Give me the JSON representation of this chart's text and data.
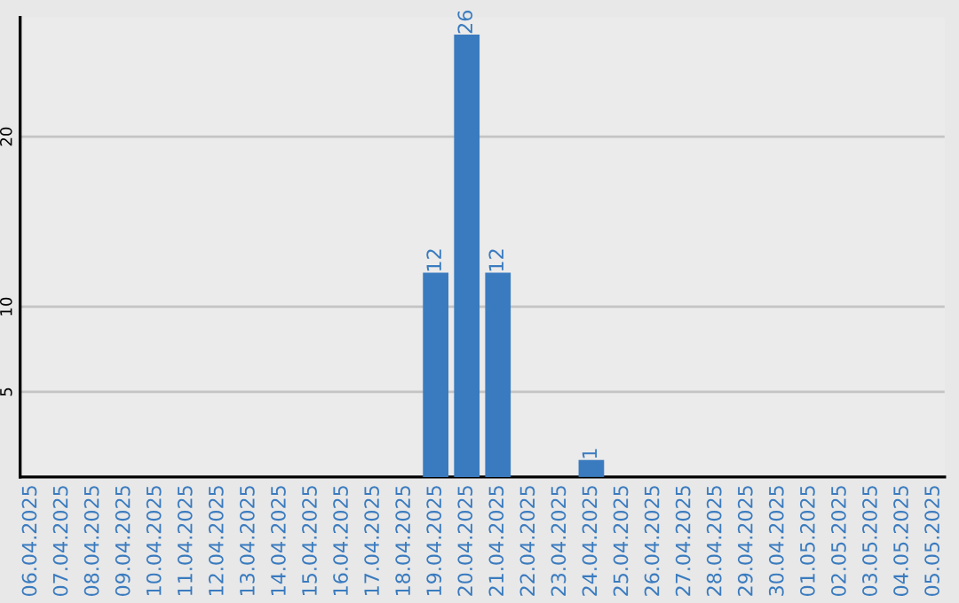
{
  "chart_data": {
    "type": "bar",
    "categories": [
      "06.04.2025",
      "07.04.2025",
      "08.04.2025",
      "09.04.2025",
      "10.04.2025",
      "11.04.2025",
      "12.04.2025",
      "13.04.2025",
      "14.04.2025",
      "15.04.2025",
      "16.04.2025",
      "17.04.2025",
      "18.04.2025",
      "19.04.2025",
      "20.04.2025",
      "21.04.2025",
      "22.04.2025",
      "23.04.2025",
      "24.04.2025",
      "25.04.2025",
      "26.04.2025",
      "27.04.2025",
      "28.04.2025",
      "29.04.2025",
      "30.04.2025",
      "01.05.2025",
      "02.05.2025",
      "03.05.2025",
      "04.05.2025",
      "05.05.2025"
    ],
    "values": [
      0,
      0,
      0,
      0,
      0,
      0,
      0,
      0,
      0,
      0,
      0,
      0,
      0,
      12,
      26,
      12,
      0,
      0,
      1,
      0,
      0,
      0,
      0,
      0,
      0,
      0,
      0,
      0,
      0,
      0
    ],
    "value_labels": [
      null,
      null,
      null,
      null,
      null,
      null,
      null,
      null,
      null,
      null,
      null,
      null,
      null,
      "12",
      "26",
      "12",
      null,
      null,
      "1",
      null,
      null,
      null,
      null,
      null,
      null,
      null,
      null,
      null,
      null,
      null
    ],
    "color": "#3a7bbf",
    "ylim": [
      0,
      27
    ],
    "yticks": [
      5,
      10,
      20
    ],
    "grid": "y",
    "legend": false
  }
}
